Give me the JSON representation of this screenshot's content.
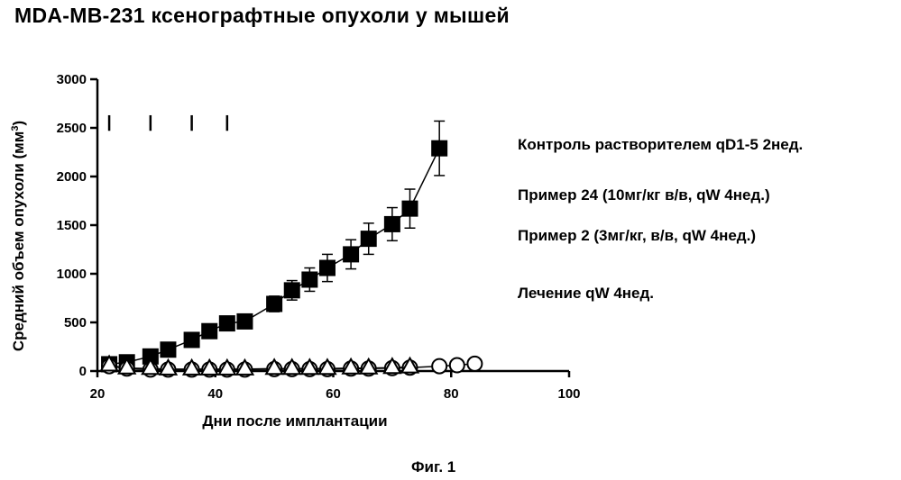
{
  "title": "MDA-MB-231 ксенографтные опухоли у мышей",
  "figure_caption": "Фиг. 1",
  "legend": [
    "Контроль растворителем qD1-5 2нед.",
    "Пример 24 (10мг/кг в/в, qW 4нед.)",
    "Пример 2 (3мг/кг, в/в, qW 4нед.)",
    "Лечение qW 4нед."
  ],
  "chart_data": {
    "type": "scatter",
    "title": "MDA-MB-231 ксенографтные опухоли у мышей",
    "xlabel": "Дни после имплантации",
    "ylabel": "Средний объем опухоли (мм",
    "ylabel_sup": "3",
    "ylabel_close": ")",
    "xlim": [
      20,
      100
    ],
    "ylim": [
      0,
      3000
    ],
    "xticks": [
      20,
      40,
      60,
      80,
      100
    ],
    "yticks": [
      0,
      500,
      1000,
      1500,
      2000,
      2500,
      3000
    ],
    "treatment_days": [
      22,
      29,
      36,
      42
    ],
    "series": [
      {
        "name": "Контроль растворителем qD1-5 2нед.",
        "marker": "filled-square",
        "x": [
          22,
          25,
          29,
          32,
          36,
          39,
          42,
          45,
          50,
          53,
          56,
          59,
          63,
          66,
          70,
          73,
          78
        ],
        "y": [
          70,
          90,
          150,
          220,
          320,
          410,
          490,
          510,
          690,
          830,
          940,
          1060,
          1200,
          1360,
          1510,
          1670,
          2290
        ],
        "err": [
          0,
          0,
          0,
          0,
          0,
          0,
          30,
          30,
          80,
          100,
          120,
          140,
          150,
          160,
          170,
          200,
          280
        ]
      },
      {
        "name": "Пример 24 (10мг/кг в/в, qW 4нед.)",
        "marker": "open-circle",
        "x": [
          22,
          25,
          29,
          32,
          36,
          39,
          42,
          45,
          50,
          53,
          56,
          59,
          63,
          66,
          70,
          73,
          78,
          81,
          84
        ],
        "y": [
          50,
          25,
          15,
          15,
          15,
          15,
          15,
          15,
          20,
          20,
          20,
          20,
          25,
          25,
          30,
          35,
          50,
          60,
          75
        ]
      },
      {
        "name": "Пример 2 (3мг/кг, в/в, qW 4нед.)",
        "marker": "open-triangle",
        "x": [
          22,
          25,
          29,
          32,
          36,
          39,
          42,
          45,
          50,
          53,
          56,
          59,
          63,
          66,
          70,
          73
        ],
        "y": [
          60,
          30,
          25,
          20,
          20,
          20,
          20,
          20,
          25,
          25,
          25,
          25,
          30,
          30,
          35,
          40
        ]
      }
    ]
  }
}
